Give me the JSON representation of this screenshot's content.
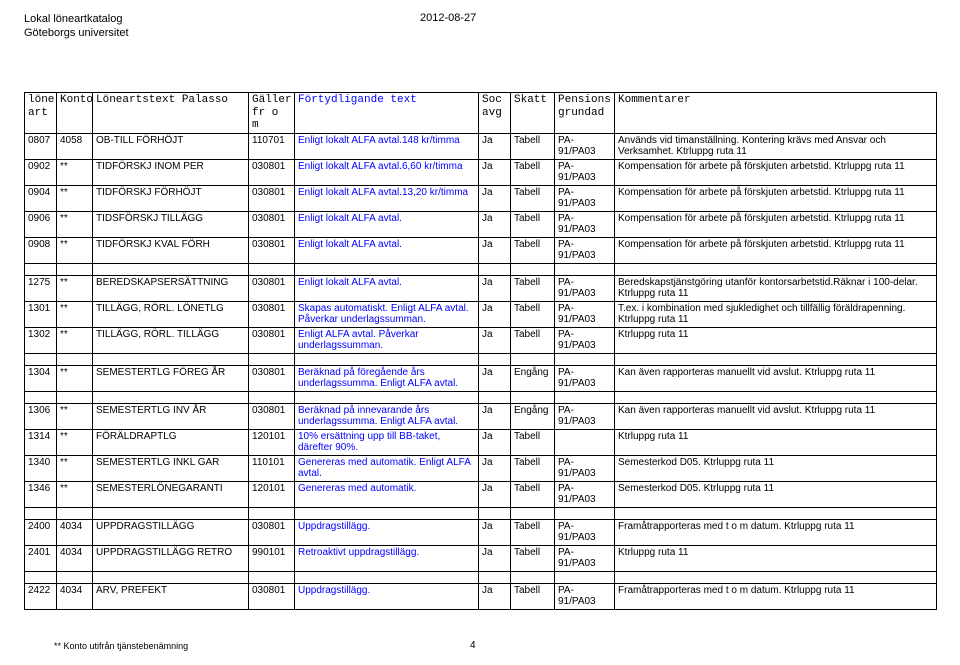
{
  "header": {
    "line1": "Lokal löneartkatalog",
    "line2": "Göteborgs universitet",
    "date": "2012-08-27"
  },
  "columns": {
    "art": "löne\nart",
    "konto": "Konto",
    "text": "Löneartstext Palasso",
    "from": "Gäller\nfr o m",
    "fort": "Förtydligande text",
    "soc": "Soc\navg",
    "skatt": "Skatt",
    "pens": "Pensions\ngrundad",
    "komm": "Kommentarer"
  },
  "rows": [
    {
      "art": "0807",
      "konto": "4058",
      "text": "OB-TILL FÖRHÖJT",
      "from": "110701",
      "fort": "Enligt lokalt ALFA avtal.148 kr/timma",
      "soc": "Ja",
      "skatt": "Tabell",
      "pens": "PA-91/PA03",
      "komm": "Används vid timanställning. Kontering krävs med Ansvar och Verksamhet. Ktrluppg ruta 11"
    },
    {
      "art": "0902",
      "konto": "**",
      "text": "TIDFÖRSKJ INOM PER",
      "from": "030801",
      "fort": "Enligt lokalt ALFA avtal.6,60 kr/timma",
      "soc": "Ja",
      "skatt": "Tabell",
      "pens": "PA-91/PA03",
      "komm": "Kompensation för arbete på förskjuten arbetstid. Ktrluppg ruta 11"
    },
    {
      "art": "0904",
      "konto": "**",
      "text": "TIDFÖRSKJ FÖRHÖJT",
      "from": "030801",
      "fort": "Enligt lokalt ALFA avtal.13,20 kr/timma",
      "soc": "Ja",
      "skatt": "Tabell",
      "pens": "PA-91/PA03",
      "komm": "Kompensation för arbete på förskjuten arbetstid. Ktrluppg ruta 11"
    },
    {
      "art": "0906",
      "konto": "**",
      "text": "TIDSFÖRSKJ TILLÄGG",
      "from": "030801",
      "fort": "Enligt lokalt ALFA avtal.",
      "soc": "Ja",
      "skatt": "Tabell",
      "pens": "PA-91/PA03",
      "komm": "Kompensation för arbete på förskjuten arbetstid. Ktrluppg ruta 11"
    },
    {
      "art": "0908",
      "konto": "**",
      "text": "TIDFÖRSKJ KVAL FÖRH",
      "from": "030801",
      "fort": "Enligt lokalt ALFA avtal.",
      "soc": "Ja",
      "skatt": "Tabell",
      "pens": "PA-91/PA03",
      "komm": "Kompensation för arbete på förskjuten arbetstid. Ktrluppg ruta 11"
    },
    {
      "blank": true
    },
    {
      "art": "1275",
      "konto": "**",
      "text": "BEREDSKAPSERSÄTTNING",
      "from": "030801",
      "fort": "Enligt lokalt ALFA avtal.",
      "soc": "Ja",
      "skatt": "Tabell",
      "pens": "PA-91/PA03",
      "komm": "Beredskapstjänstgöring utanför kontorsarbetstid.Räknar i 100-delar. Ktrluppg ruta 11"
    },
    {
      "art": "1301",
      "konto": "**",
      "text": "TILLÄGG, RÖRL. LÖNETLG",
      "from": "030801",
      "fort": "Skapas automatiskt. Enligt ALFA avtal. Påverkar underlagssumman.",
      "soc": "Ja",
      "skatt": "Tabell",
      "pens": "PA-91/PA03",
      "komm": "T.ex. i kombination med sjukledighet och tillfällig föräldrapenning. Ktrluppg ruta 11"
    },
    {
      "art": "1302",
      "konto": "**",
      "text": "TILLÄGG, RÖRL. TILLÄGG",
      "from": "030801",
      "fort": "Enligt ALFA avtal. Påverkar underlagssumman.",
      "soc": "Ja",
      "skatt": "Tabell",
      "pens": "PA-91/PA03",
      "komm": "Ktrluppg ruta 11"
    },
    {
      "blank": true
    },
    {
      "art": "1304",
      "konto": "**",
      "text": "SEMESTERTLG FÖREG ÅR",
      "from": "030801",
      "fort": "Beräknad på föregående års underlagssumma. Enligt ALFA avtal.",
      "soc": "Ja",
      "skatt": "Engång",
      "pens": "PA-91/PA03",
      "komm": "Kan även rapporteras manuellt vid avslut. Ktrluppg ruta 11"
    },
    {
      "blank": true
    },
    {
      "art": "1306",
      "konto": "**",
      "text": "SEMESTERTLG INV ÅR",
      "from": "030801",
      "fort": "Beräknad på innevarande års underlagssumma. Enligt ALFA avtal.",
      "soc": "Ja",
      "skatt": "Engång",
      "pens": "PA-91/PA03",
      "komm": "Kan även rapporteras manuellt vid avslut. Ktrluppg ruta 11"
    },
    {
      "art": "1314",
      "konto": "**",
      "text": "FÖRÄLDRAPTLG",
      "from": "120101",
      "fort": "10% ersättning upp till BB-taket, därefter 90%.",
      "soc": "Ja",
      "skatt": "Tabell",
      "pens": "",
      "komm": "Ktrluppg ruta 11"
    },
    {
      "art": "1340",
      "konto": "**",
      "text": "SEMESTERTLG INKL GAR",
      "from": "110101",
      "fort": "Genereras med automatik. Enligt ALFA avtal.",
      "soc": "Ja",
      "skatt": "Tabell",
      "pens": "PA-91/PA03",
      "komm": "Semesterkod D05. Ktrluppg ruta 11"
    },
    {
      "art": "1346",
      "konto": "**",
      "text": "SEMESTERLÖNEGARANTI",
      "from": "120101",
      "fort": "Genereras med automatik.",
      "soc": "Ja",
      "skatt": "Tabell",
      "pens": "PA-91/PA03",
      "komm": "Semesterkod D05. Ktrluppg ruta 11"
    },
    {
      "blank": true
    },
    {
      "art": "2400",
      "konto": "4034",
      "text": "UPPDRAGSTILLÄGG",
      "from": "030801",
      "fort": "Uppdragstillägg.",
      "soc": "Ja",
      "skatt": "Tabell",
      "pens": "PA-91/PA03",
      "komm": "Framåtrapporteras med t o m datum. Ktrluppg ruta 11"
    },
    {
      "art": "2401",
      "konto": "4034",
      "text": "UPPDRAGSTILLÄGG RETRO",
      "from": "990101",
      "fort": "Retroaktivt uppdragstillägg.",
      "soc": "Ja",
      "skatt": "Tabell",
      "pens": "PA-91/PA03",
      "komm": "Ktrluppg ruta 11"
    },
    {
      "blank": true
    },
    {
      "art": "2422",
      "konto": "4034",
      "text": "ARV, PREFEKT",
      "from": "030801",
      "fort": "Uppdragstillägg.",
      "soc": "Ja",
      "skatt": "Tabell",
      "pens": "PA-91/PA03",
      "komm": "Framåtrapporteras med t o m datum. Ktrluppg ruta 11"
    }
  ],
  "footer": {
    "note": "** Konto utifrån tjänstebenämning",
    "page": "4"
  },
  "styling": {
    "blue": "#0000ff",
    "black": "#000000",
    "background": "#ffffff",
    "body_font_size": 10,
    "header_font_size": 11,
    "mono_font": "Courier New"
  }
}
